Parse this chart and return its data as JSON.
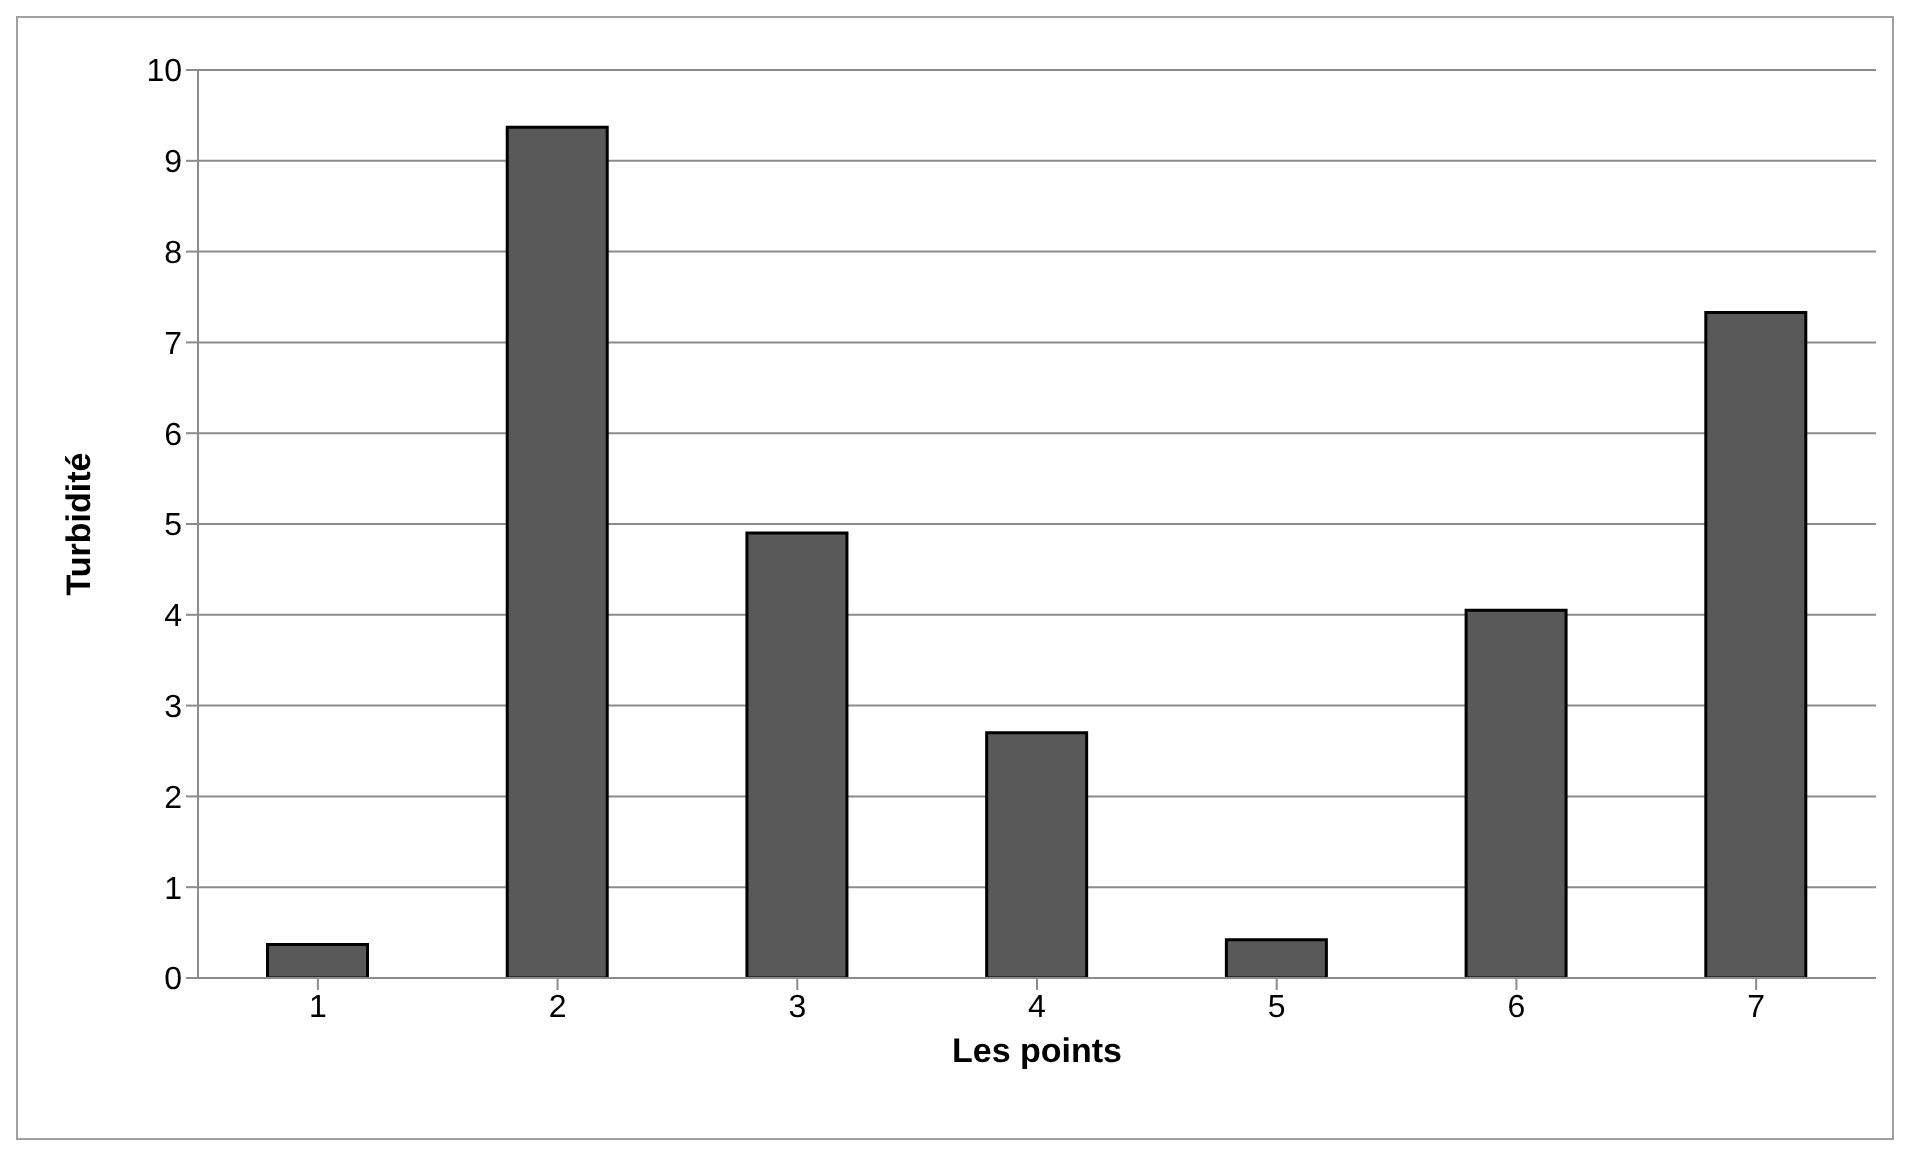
{
  "chart_data": {
    "type": "bar",
    "xlabel": "Les points",
    "ylabel": "Turbidité",
    "categories": [
      "1",
      "2",
      "3",
      "4",
      "5",
      "6",
      "7"
    ],
    "values": [
      0.37,
      9.37,
      4.9,
      2.7,
      0.42,
      4.05,
      7.33
    ],
    "color": "#595959",
    "ylim": [
      0,
      10
    ],
    "yticks": [
      0,
      1,
      2,
      3,
      4,
      5,
      6,
      7,
      8,
      9,
      10
    ],
    "grid": "y"
  }
}
